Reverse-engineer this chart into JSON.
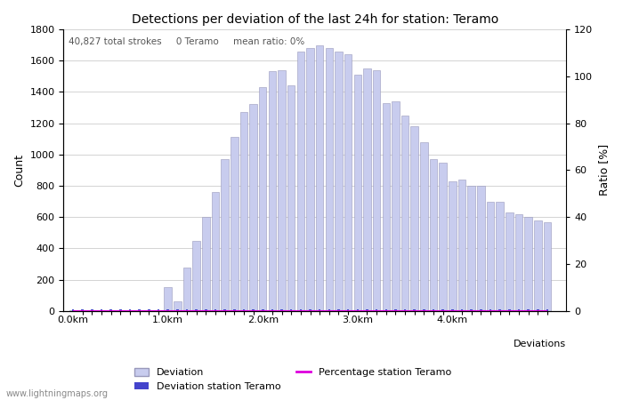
{
  "title": "Detections per deviation of the last 24h for station: Teramo",
  "annotation": "40,827 total strokes     0 Teramo     mean ratio: 0%",
  "xlabel_right": "Deviations",
  "ylabel_left": "Count",
  "ylabel_right": "Ratio [%]",
  "watermark": "www.lightningmaps.org",
  "bar_color": "#c8ccee",
  "bar_edge_color": "#9999bb",
  "station_bar_color": "#4444cc",
  "line_color": "#dd00dd",
  "ylim_left": [
    0,
    1800
  ],
  "ylim_right": [
    0,
    120
  ],
  "yticks_left": [
    0,
    200,
    400,
    600,
    800,
    1000,
    1200,
    1400,
    1600,
    1800
  ],
  "yticks_right": [
    0,
    20,
    40,
    60,
    80,
    100,
    120
  ],
  "bar_width": 0.8,
  "counts": [
    5,
    3,
    2,
    2,
    3,
    2,
    2,
    3,
    3,
    4,
    150,
    60,
    280,
    450,
    600,
    760,
    970,
    1110,
    1270,
    1320,
    1430,
    1530,
    1540,
    1440,
    1660,
    1680,
    1700,
    1680,
    1660,
    1640,
    1510,
    1550,
    1540,
    1330,
    1340,
    1250,
    1180,
    1080,
    970,
    950,
    830,
    840,
    800,
    800,
    700,
    700,
    630,
    620,
    600,
    580,
    565
  ],
  "km_per_bar": 0.1,
  "km_ticks": [
    0.0,
    1.0,
    2.0,
    3.0,
    4.0
  ],
  "km_tick_labels": [
    "0.0km",
    "1.0km",
    "2.0km",
    "3.0km",
    "4.0km"
  ]
}
